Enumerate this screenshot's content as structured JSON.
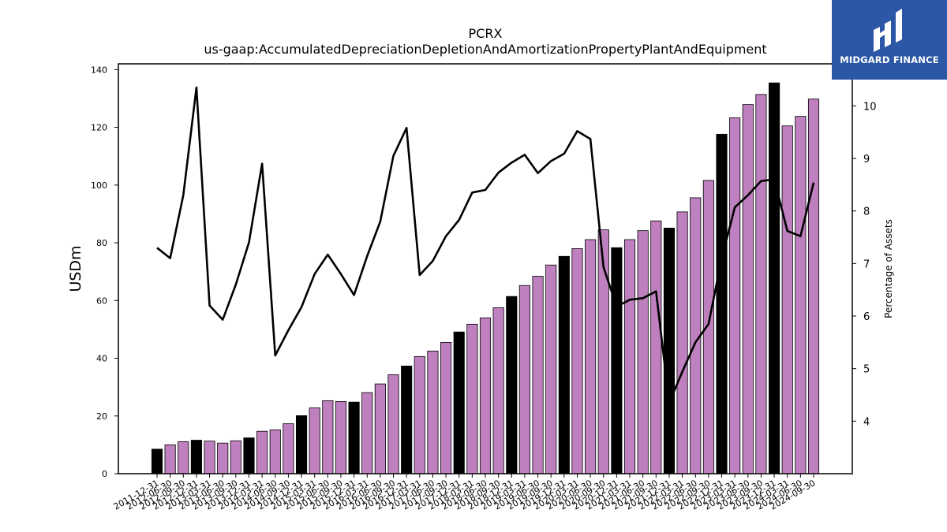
{
  "brand": {
    "name": "MIDGARD FINANCE",
    "bg_color": "#2b57a6"
  },
  "chart_data": {
    "type": "bar",
    "title": "PCRX",
    "subtitle": "us-gaap:AccumulatedDepreciationDepletionAndAmortizationPropertyPlantAndEquipment",
    "ylabel": "USDm",
    "y2label": "Percentage of Assets",
    "ylim": [
      0,
      142
    ],
    "y2lim": [
      3.0,
      10.8
    ],
    "yticks": [
      0,
      20,
      40,
      60,
      80,
      100,
      120,
      140
    ],
    "y2ticks": [
      4,
      5,
      6,
      7,
      8,
      9,
      10
    ],
    "categories": [
      "2011-12-31",
      "2012-06-30",
      "2012-09-30",
      "2012-12-31",
      "2013-03-31",
      "2013-06-30",
      "2013-09-30",
      "2013-12-31",
      "2014-03-31",
      "2014-06-30",
      "2014-09-30",
      "2014-12-31",
      "2015-03-31",
      "2015-06-30",
      "2015-09-30",
      "2015-12-31",
      "2016-03-31",
      "2016-06-30",
      "2016-09-30",
      "2016-12-31",
      "2017-03-31",
      "2017-06-30",
      "2017-09-30",
      "2017-12-31",
      "2018-03-31",
      "2018-06-30",
      "2018-09-30",
      "2018-12-31",
      "2019-03-31",
      "2019-06-30",
      "2019-09-30",
      "2019-12-31",
      "2020-03-31",
      "2020-06-30",
      "2020-09-30",
      "2020-12-31",
      "2021-03-31",
      "2021-06-30",
      "2021-09-30",
      "2021-12-31",
      "2022-03-31",
      "2022-06-30",
      "2022-09-30",
      "2022-12-31",
      "2023-03-31",
      "2023-06-30",
      "2023-09-30",
      "2023-12-31",
      "2024-03-31",
      "2024-06-30",
      "2024-09-30"
    ],
    "bar_colors": {
      "annual": "#000000",
      "quarterly": "#bf80bf"
    },
    "series": [
      {
        "kind": "bar",
        "axis": "left",
        "values": [
          8.5,
          10.0,
          11.1,
          11.6,
          11.3,
          10.6,
          11.4,
          12.4,
          14.7,
          15.2,
          17.3,
          20.1,
          22.8,
          25.3,
          25.0,
          24.8,
          28.1,
          31.1,
          34.3,
          37.3,
          40.6,
          42.5,
          45.5,
          49.1,
          51.8,
          54.0,
          57.5,
          61.4,
          65.2,
          68.4,
          72.3,
          75.3,
          78.0,
          81.1,
          84.5,
          78.3,
          81.1,
          84.2,
          87.6,
          85.1,
          90.7,
          95.6,
          101.6,
          117.6,
          123.3,
          127.9,
          131.4,
          135.4,
          120.5,
          123.8,
          129.8
        ],
        "annual_flags": [
          1,
          0,
          0,
          1,
          0,
          0,
          0,
          1,
          0,
          0,
          0,
          1,
          0,
          0,
          0,
          1,
          0,
          0,
          0,
          1,
          0,
          0,
          0,
          1,
          0,
          0,
          0,
          1,
          0,
          0,
          0,
          1,
          0,
          0,
          0,
          1,
          0,
          0,
          0,
          1,
          0,
          0,
          0,
          1,
          0,
          0,
          0,
          1,
          0,
          0,
          0
        ]
      },
      {
        "kind": "line",
        "axis": "right",
        "color": "#000000",
        "values": [
          7.3,
          7.1,
          8.3,
          10.35,
          6.2,
          5.93,
          6.6,
          7.4,
          8.9,
          5.25,
          5.73,
          6.17,
          6.8,
          7.17,
          6.8,
          6.4,
          7.14,
          7.8,
          9.05,
          9.58,
          6.78,
          7.05,
          7.52,
          7.83,
          8.35,
          8.4,
          8.73,
          8.92,
          9.07,
          8.72,
          8.95,
          9.09,
          9.52,
          9.37,
          6.93,
          6.18,
          6.31,
          6.34,
          6.47,
          4.35,
          4.94,
          5.5,
          5.85,
          7.1,
          8.07,
          8.3,
          8.57,
          8.6,
          7.62,
          7.52,
          8.54
        ]
      }
    ]
  }
}
